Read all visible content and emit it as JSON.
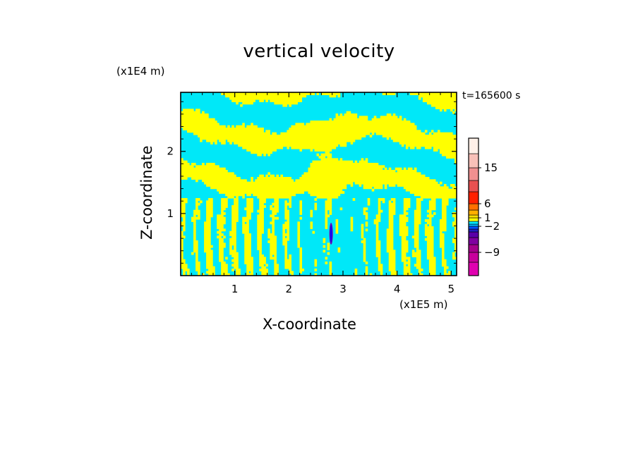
{
  "chart_data": {
    "type": "heatmap",
    "title": "vertical velocity",
    "xlabel": "X-coordinate",
    "ylabel": "Z-coordinate",
    "x_units": "(x1E5 m)",
    "z_units": "(x1E4 m)",
    "time_label": "t=165600 s",
    "xlim": [
      0,
      5.1
    ],
    "zlim": [
      0,
      2.95
    ],
    "x_ticks": [
      {
        "v": 1,
        "label": "1"
      },
      {
        "v": 2,
        "label": "2"
      },
      {
        "v": 3,
        "label": "3"
      },
      {
        "v": 4,
        "label": "4"
      },
      {
        "v": 5,
        "label": "5"
      }
    ],
    "z_ticks": [
      {
        "v": 1,
        "label": "1"
      },
      {
        "v": 2,
        "label": "2"
      }
    ],
    "colorbar": {
      "levels": [
        -12,
        -10.5,
        -9,
        -7.5,
        -6,
        -4,
        -3,
        -2,
        -1,
        0,
        1,
        2,
        4,
        6,
        9,
        12,
        15,
        18,
        22
      ],
      "colors": [
        "#e000b0",
        "#c8009c",
        "#a6008c",
        "#8000a0",
        "#5a00a8",
        "#2020c0",
        "#0050ff",
        "#00b4ff",
        "#00eaff",
        "#ffff00",
        "#ffe000",
        "#ffb000",
        "#ff7000",
        "#ff2000",
        "#e85050",
        "#f09090",
        "#f8c0b8",
        "#fff0e8"
      ],
      "tick_labels": [
        {
          "v": 15,
          "label": "15"
        },
        {
          "v": 6,
          "label": "6"
        },
        {
          "v": 1,
          "label": "1"
        },
        {
          "v": -2,
          "label": "−2"
        },
        {
          "v": -9,
          "label": "−9"
        }
      ]
    },
    "field": {
      "positive_color": "#ffff00",
      "negative_color": "#00e8f8",
      "updraft_core": {
        "x": 2.78,
        "z_range": [
          0.5,
          0.85
        ],
        "color": "#7000b0"
      }
    }
  }
}
